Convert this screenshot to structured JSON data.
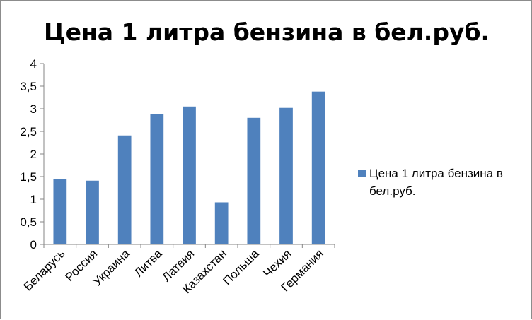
{
  "chart_data": {
    "type": "bar",
    "title": "Цена 1 литра бензина в бел.руб.",
    "categories": [
      "Беларусь",
      "Россия",
      "Украина",
      "Литва",
      "Латвия",
      "Казахстан",
      "Польша",
      "Чехия",
      "Германия"
    ],
    "series": [
      {
        "name": "Цена 1 литра бензина в бел.руб.",
        "values": [
          1.45,
          1.41,
          2.41,
          2.88,
          3.05,
          0.93,
          2.8,
          3.02,
          3.38
        ],
        "color": "#4f81bd"
      }
    ],
    "ylim": [
      0,
      4
    ],
    "yticks": [
      "0",
      "0,5",
      "1",
      "1,5",
      "2",
      "2,5",
      "3",
      "3,5",
      "4"
    ],
    "grid": false,
    "legend": {
      "position": "right",
      "lines": [
        "Цена 1 литра бензина в",
        "бел.руб."
      ]
    }
  }
}
